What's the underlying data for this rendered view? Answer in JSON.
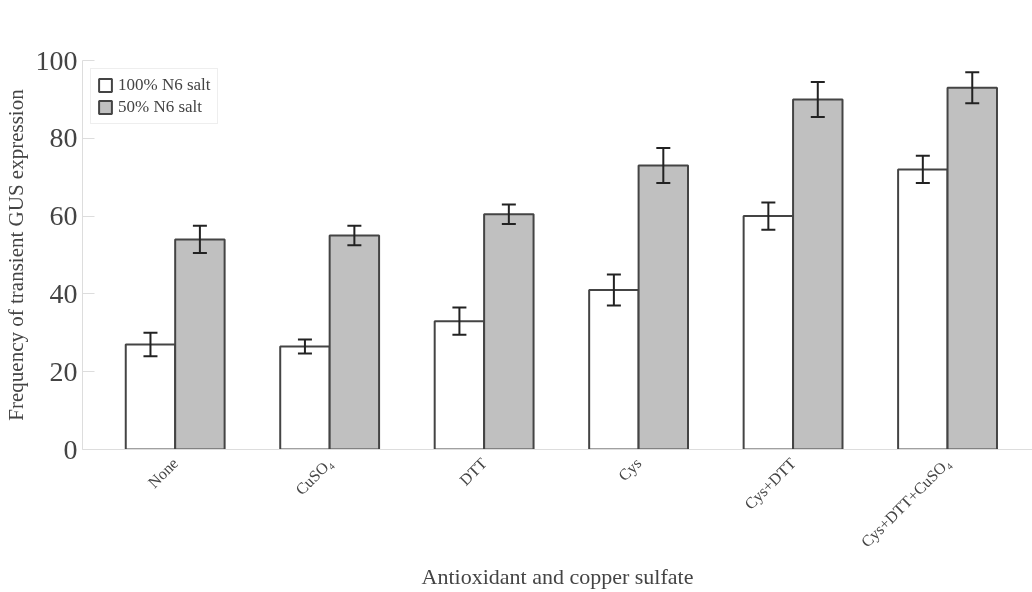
{
  "chart_data": {
    "type": "bar",
    "xlabel": "Antioxidant and copper sulfate",
    "ylabel": "Frequency of transient GUS expression",
    "categories": [
      "None",
      "CuSO₄",
      "DTT",
      "Cys",
      "Cys+DTT",
      "Cys+DTT+CuSO₄"
    ],
    "series": [
      {
        "name": "100% N6 salt",
        "color": "#ffffff",
        "values": [
          27,
          26.5,
          33,
          41,
          60,
          72
        ],
        "errors": [
          3,
          1.8,
          3.5,
          4,
          3.5,
          3.5
        ]
      },
      {
        "name": "50% N6 salt",
        "color": "#c0c0c0",
        "values": [
          54,
          55,
          60.5,
          73,
          90,
          93
        ],
        "errors": [
          3.5,
          2.5,
          2.5,
          4.5,
          4.5,
          4
        ]
      }
    ],
    "ylim": [
      0,
      100
    ],
    "yticks": [
      0,
      20,
      40,
      60,
      80,
      100
    ],
    "legend": "top left"
  }
}
